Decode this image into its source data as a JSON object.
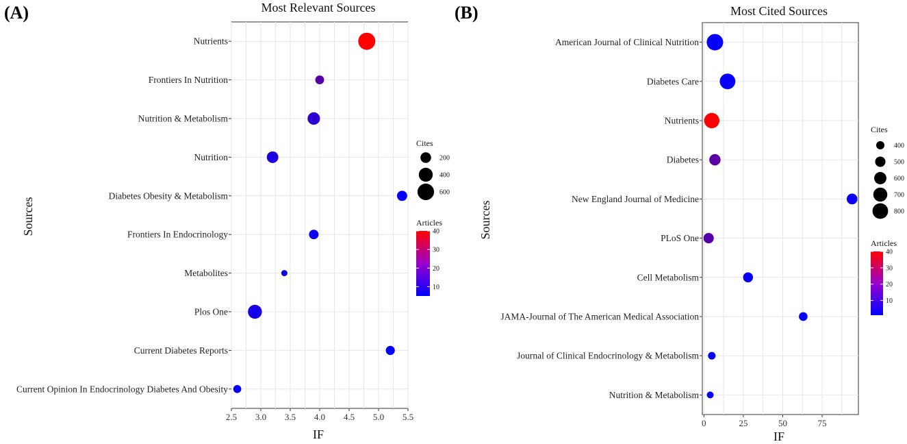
{
  "panels": [
    {
      "label": "(A)",
      "chart_data": {
        "type": "scatter",
        "title": "Most Relevant Sources",
        "xlabel": "IF",
        "ylabel": "Sources",
        "xlim": [
          2.5,
          5.5
        ],
        "xticks": [
          2.5,
          3.0,
          3.5,
          4.0,
          4.5,
          5.0,
          5.5
        ],
        "xtick_labels": [
          "2.5",
          "3.0",
          "3.5",
          "4.0",
          "4.5",
          "5.0",
          "5.5"
        ],
        "points": [
          {
            "source": "Nutrients",
            "IF": 4.8,
            "cites": 650,
            "articles": 40
          },
          {
            "source": "Frontiers In Nutrition",
            "IF": 4.0,
            "cites": 120,
            "articles": 17
          },
          {
            "source": "Nutrition & Metabolism",
            "IF": 3.9,
            "cites": 300,
            "articles": 11
          },
          {
            "source": "Nutrition",
            "IF": 3.2,
            "cites": 250,
            "articles": 9
          },
          {
            "source": "Diabetes Obesity & Metabolism",
            "IF": 5.4,
            "cites": 180,
            "articles": 6
          },
          {
            "source": "Frontiers In Endocrinology",
            "IF": 3.9,
            "cites": 150,
            "articles": 7
          },
          {
            "source": "Metabolites",
            "IF": 3.4,
            "cites": 40,
            "articles": 6
          },
          {
            "source": "Plos One",
            "IF": 2.9,
            "cites": 400,
            "articles": 8
          },
          {
            "source": "Current Diabetes Reports",
            "IF": 5.2,
            "cites": 130,
            "articles": 5
          },
          {
            "source": "Current Opinion In Endocrinology Diabetes And Obesity",
            "IF": 2.6,
            "cites": 90,
            "articles": 5
          }
        ],
        "size_legend": {
          "title": "Cites",
          "values": [
            200,
            400,
            600
          ],
          "labels": [
            "200",
            "400",
            "600"
          ]
        },
        "color_legend": {
          "title": "Articles",
          "range": [
            5,
            40
          ],
          "ticks": [
            10,
            20,
            30,
            40
          ],
          "tick_labels": [
            "10",
            "20",
            "30",
            "40"
          ],
          "low_color": "#0000ff",
          "high_color": "#ff0000"
        }
      }
    },
    {
      "label": "(B)",
      "chart_data": {
        "type": "scatter",
        "title": "Most Cited Sources",
        "xlabel": "IF",
        "ylabel": "Sources",
        "xlim": [
          -1,
          98
        ],
        "xticks": [
          0,
          25,
          50,
          75
        ],
        "xtick_labels": [
          "0",
          "25",
          "50",
          "75"
        ],
        "points": [
          {
            "source": "American Journal of Clinical Nutrition",
            "IF": 7,
            "cites": 850,
            "articles": 2
          },
          {
            "source": "Diabetes Care",
            "IF": 15,
            "cites": 800,
            "articles": 2
          },
          {
            "source": "Nutrients",
            "IF": 5,
            "cites": 780,
            "articles": 40
          },
          {
            "source": "Diabetes",
            "IF": 7,
            "cites": 550,
            "articles": 15
          },
          {
            "source": "New England Journal of Medicine",
            "IF": 94,
            "cites": 520,
            "articles": 3
          },
          {
            "source": "PLoS One",
            "IF": 3,
            "cites": 500,
            "articles": 14
          },
          {
            "source": "Cell Metabolism",
            "IF": 28,
            "cites": 480,
            "articles": 2
          },
          {
            "source": "JAMA-Journal of The American Medical Association",
            "IF": 63,
            "cites": 420,
            "articles": 2
          },
          {
            "source": "Journal of Clinical Endocrinology & Metabolism",
            "IF": 5,
            "cites": 370,
            "articles": 2
          },
          {
            "source": "Nutrition & Metabolism",
            "IF": 4,
            "cites": 340,
            "articles": 2
          }
        ],
        "size_legend": {
          "title": "Cites",
          "values": [
            400,
            500,
            600,
            700,
            800
          ],
          "labels": [
            "400",
            "500",
            "600",
            "700",
            "800"
          ]
        },
        "color_legend": {
          "title": "Articles",
          "range": [
            1,
            40
          ],
          "ticks": [
            10,
            20,
            30,
            40
          ],
          "tick_labels": [
            "10",
            "20",
            "30",
            "40"
          ],
          "low_color": "#0000ff",
          "high_color": "#ff0000"
        }
      }
    }
  ]
}
